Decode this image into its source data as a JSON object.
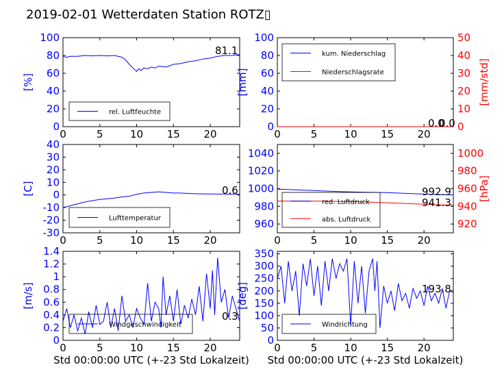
{
  "figure": {
    "title": "2019-02-01 Wetterdaten Station ROTZ▯",
    "colors": {
      "blue": "#0000ff",
      "red": "#ff0000",
      "black": "#000000"
    }
  },
  "chart_data": [
    {
      "id": "p1",
      "type": "line",
      "ylabel": "[%]",
      "ylim": [
        0,
        100
      ],
      "yticks": [
        0,
        20,
        40,
        60,
        80,
        100
      ],
      "xlim": [
        0,
        24
      ],
      "xticks": [
        0,
        5,
        10,
        15,
        20
      ],
      "xlabel": "",
      "legend": [
        "rel. Luftfeuchte"
      ],
      "legend_position": "bottom-left",
      "last_value_label": "81.1",
      "series": [
        {
          "name": "rel. Luftfeuchte",
          "color": "#0000ff",
          "axis": "left",
          "x": [
            0,
            0.5,
            1,
            2,
            3,
            4,
            5,
            6,
            7,
            8,
            8.5,
            9,
            9.5,
            10,
            10.3,
            10.6,
            11,
            11.5,
            12,
            12.5,
            13,
            14,
            15,
            16,
            17,
            18,
            19,
            20,
            21,
            22,
            23,
            24
          ],
          "y": [
            79,
            78,
            79,
            79,
            80,
            79.5,
            80,
            79.5,
            80,
            78,
            75,
            70,
            66,
            62,
            65,
            63,
            66,
            65,
            67,
            66,
            68,
            67,
            70,
            71,
            73,
            74,
            76,
            77,
            79,
            80,
            80,
            81.1
          ]
        }
      ]
    },
    {
      "id": "p2",
      "type": "line",
      "ylabel": "[mm]",
      "ylim": [
        0,
        100
      ],
      "yticks": [
        0,
        20,
        40,
        60,
        80,
        100
      ],
      "ylabel2": "[mm/std]",
      "ylim2": [
        0,
        50
      ],
      "yticks2": [
        0,
        10,
        20,
        30,
        40,
        50
      ],
      "xlim": [
        0,
        24
      ],
      "xticks": [
        0,
        5,
        10,
        15,
        20
      ],
      "xlabel": "",
      "legend": [
        "kum. Niederschlag",
        "Niederschlagsrate"
      ],
      "legend_position": "top-left",
      "last_value_label": "0.0",
      "last_value_label2": "0.0",
      "series": [
        {
          "name": "kum. Niederschlag",
          "color": "#0000ff",
          "axis": "left",
          "x": [
            0,
            24
          ],
          "y": [
            0,
            0
          ]
        },
        {
          "name": "Niederschlagsrate",
          "color": "#ff0000",
          "axis": "right",
          "x": [
            0,
            24
          ],
          "y": [
            0,
            0
          ]
        }
      ]
    },
    {
      "id": "p3",
      "type": "line",
      "ylabel": "[C]",
      "ylim": [
        -30,
        40
      ],
      "yticks": [
        -30,
        -20,
        -10,
        0,
        10,
        20,
        30,
        40
      ],
      "xlim": [
        0,
        24
      ],
      "xticks": [
        0,
        5,
        10,
        15,
        20
      ],
      "xlabel": "",
      "legend": [
        "Lufttemperatur"
      ],
      "legend_position": "bottom-left",
      "last_value_label": "0.6",
      "series": [
        {
          "name": "Lufttemperatur",
          "color": "#0000ff",
          "axis": "left",
          "x": [
            0,
            1,
            2,
            3,
            4,
            5,
            6,
            7,
            8,
            9,
            10,
            11,
            12,
            13,
            14,
            15,
            16,
            17,
            18,
            19,
            20,
            21,
            22,
            23,
            24
          ],
          "y": [
            -10,
            -8.5,
            -7,
            -5.5,
            -4.5,
            -3.5,
            -3,
            -2.5,
            -1.5,
            -1,
            0.5,
            1.5,
            2,
            2.5,
            2,
            1.5,
            1.5,
            1.2,
            1,
            0.9,
            0.8,
            0.7,
            0.7,
            0.6,
            0.6
          ]
        }
      ]
    },
    {
      "id": "p4",
      "type": "line",
      "ylabel": "",
      "ylim": [
        950,
        1050
      ],
      "yticks": [
        960,
        980,
        1000,
        1020,
        1040
      ],
      "ylabel2": "[hPa]",
      "ylim2": [
        910,
        1010
      ],
      "yticks2": [
        920,
        940,
        960,
        980,
        1000
      ],
      "xlim": [
        0,
        24
      ],
      "xticks": [
        0,
        5,
        10,
        15,
        20
      ],
      "xlabel": "",
      "legend": [
        "red. Luftdruck",
        "abs. Luftdruck"
      ],
      "legend_position": "bottom-left",
      "last_value_label": "992.9",
      "last_value_label2": "941.3",
      "series": [
        {
          "name": "red. Luftdruck",
          "color": "#0000ff",
          "axis": "left",
          "x": [
            0,
            3,
            6,
            9,
            12,
            15,
            18,
            21,
            24
          ],
          "y": [
            999.5,
            998.5,
            997.5,
            996.5,
            996,
            995.5,
            994.5,
            993.5,
            992.9
          ]
        },
        {
          "name": "abs. Luftdruck",
          "color": "#ff0000",
          "axis": "right",
          "x": [
            0,
            3,
            6,
            9,
            12,
            15,
            18,
            21,
            24
          ],
          "y": [
            946,
            946,
            945.8,
            945.5,
            945,
            944,
            943,
            942,
            941.3
          ]
        }
      ]
    },
    {
      "id": "p5",
      "type": "line",
      "ylabel": "[m/s]",
      "ylim": [
        0,
        1.4
      ],
      "yticks": [
        0,
        0.2,
        0.4,
        0.6,
        0.8,
        1.0,
        1.2,
        1.4
      ],
      "xlim": [
        0,
        24
      ],
      "xticks": [
        0,
        5,
        10,
        15,
        20
      ],
      "xlabel": "Std 00:00:00 UTC (+-23 Std Lokalzeit)",
      "legend": [
        "Windgeschwindigkeit"
      ],
      "legend_position": "bottom-left",
      "last_value_label": "0.3",
      "series": [
        {
          "name": "Windgeschwindigkeit",
          "color": "#0000ff",
          "axis": "left",
          "x": [
            0,
            0.5,
            1,
            1.5,
            2,
            2.5,
            3,
            3.5,
            4,
            4.5,
            5,
            5.5,
            6,
            6.5,
            7,
            7.5,
            8,
            8.5,
            9,
            9.5,
            10,
            10.5,
            11,
            11.5,
            12,
            12.5,
            13,
            13.3,
            13.6,
            14,
            14.5,
            15,
            15.5,
            16,
            16.5,
            17,
            17.5,
            18,
            18.5,
            19,
            19.5,
            20,
            20.3,
            20.6,
            21,
            21.5,
            22,
            22.5,
            23,
            23.5,
            24
          ],
          "y": [
            0.3,
            0.5,
            0.2,
            0.4,
            0.15,
            0.35,
            0.1,
            0.45,
            0.2,
            0.55,
            0.25,
            0.3,
            0.6,
            0.2,
            0.5,
            0.15,
            0.7,
            0.3,
            0.4,
            0.2,
            0.5,
            0.35,
            0.25,
            0.9,
            0.3,
            0.6,
            0.5,
            0.2,
            1.0,
            0.4,
            0.7,
            0.3,
            0.8,
            0.25,
            0.55,
            0.35,
            0.65,
            0.4,
            0.85,
            0.3,
            1.05,
            0.5,
            1.1,
            0.4,
            1.3,
            0.6,
            0.8,
            0.35,
            0.7,
            0.5,
            0.3
          ]
        }
      ]
    },
    {
      "id": "p6",
      "type": "line",
      "ylabel": "[deg]",
      "ylim": [
        0,
        360
      ],
      "yticks": [
        0,
        50,
        100,
        150,
        200,
        250,
        300,
        350
      ],
      "xlim": [
        0,
        24
      ],
      "xticks": [
        0,
        5,
        10,
        15,
        20
      ],
      "xlabel": "Std 00:00:00 UTC (+-23 Std Lokalzeit)",
      "legend": [
        "Windrichtung"
      ],
      "legend_position": "bottom-left",
      "last_value_label": "193.8",
      "series": [
        {
          "name": "Windrichtung",
          "color": "#0000ff",
          "axis": "left",
          "x": [
            0,
            0.5,
            1,
            1.5,
            2,
            2.5,
            3,
            3.5,
            4,
            4.5,
            5,
            5.5,
            6,
            6.5,
            7,
            7.5,
            8,
            8.5,
            9,
            9.5,
            10,
            10.5,
            11,
            11.5,
            12,
            12.5,
            13,
            13.3,
            13.6,
            14,
            14.5,
            15,
            15.5,
            16,
            16.5,
            17,
            17.5,
            18,
            18.5,
            19,
            19.5,
            20,
            20.5,
            21,
            21.5,
            22,
            22.5,
            23,
            23.5,
            24
          ],
          "y": [
            250,
            300,
            150,
            320,
            200,
            280,
            100,
            310,
            220,
            330,
            180,
            300,
            140,
            320,
            200,
            330,
            250,
            310,
            280,
            330,
            60,
            320,
            150,
            300,
            110,
            280,
            330,
            200,
            320,
            50,
            220,
            150,
            200,
            120,
            230,
            160,
            190,
            130,
            210,
            170,
            200,
            140,
            220,
            160,
            190,
            150,
            210,
            130,
            200,
            193.8
          ]
        }
      ]
    }
  ]
}
